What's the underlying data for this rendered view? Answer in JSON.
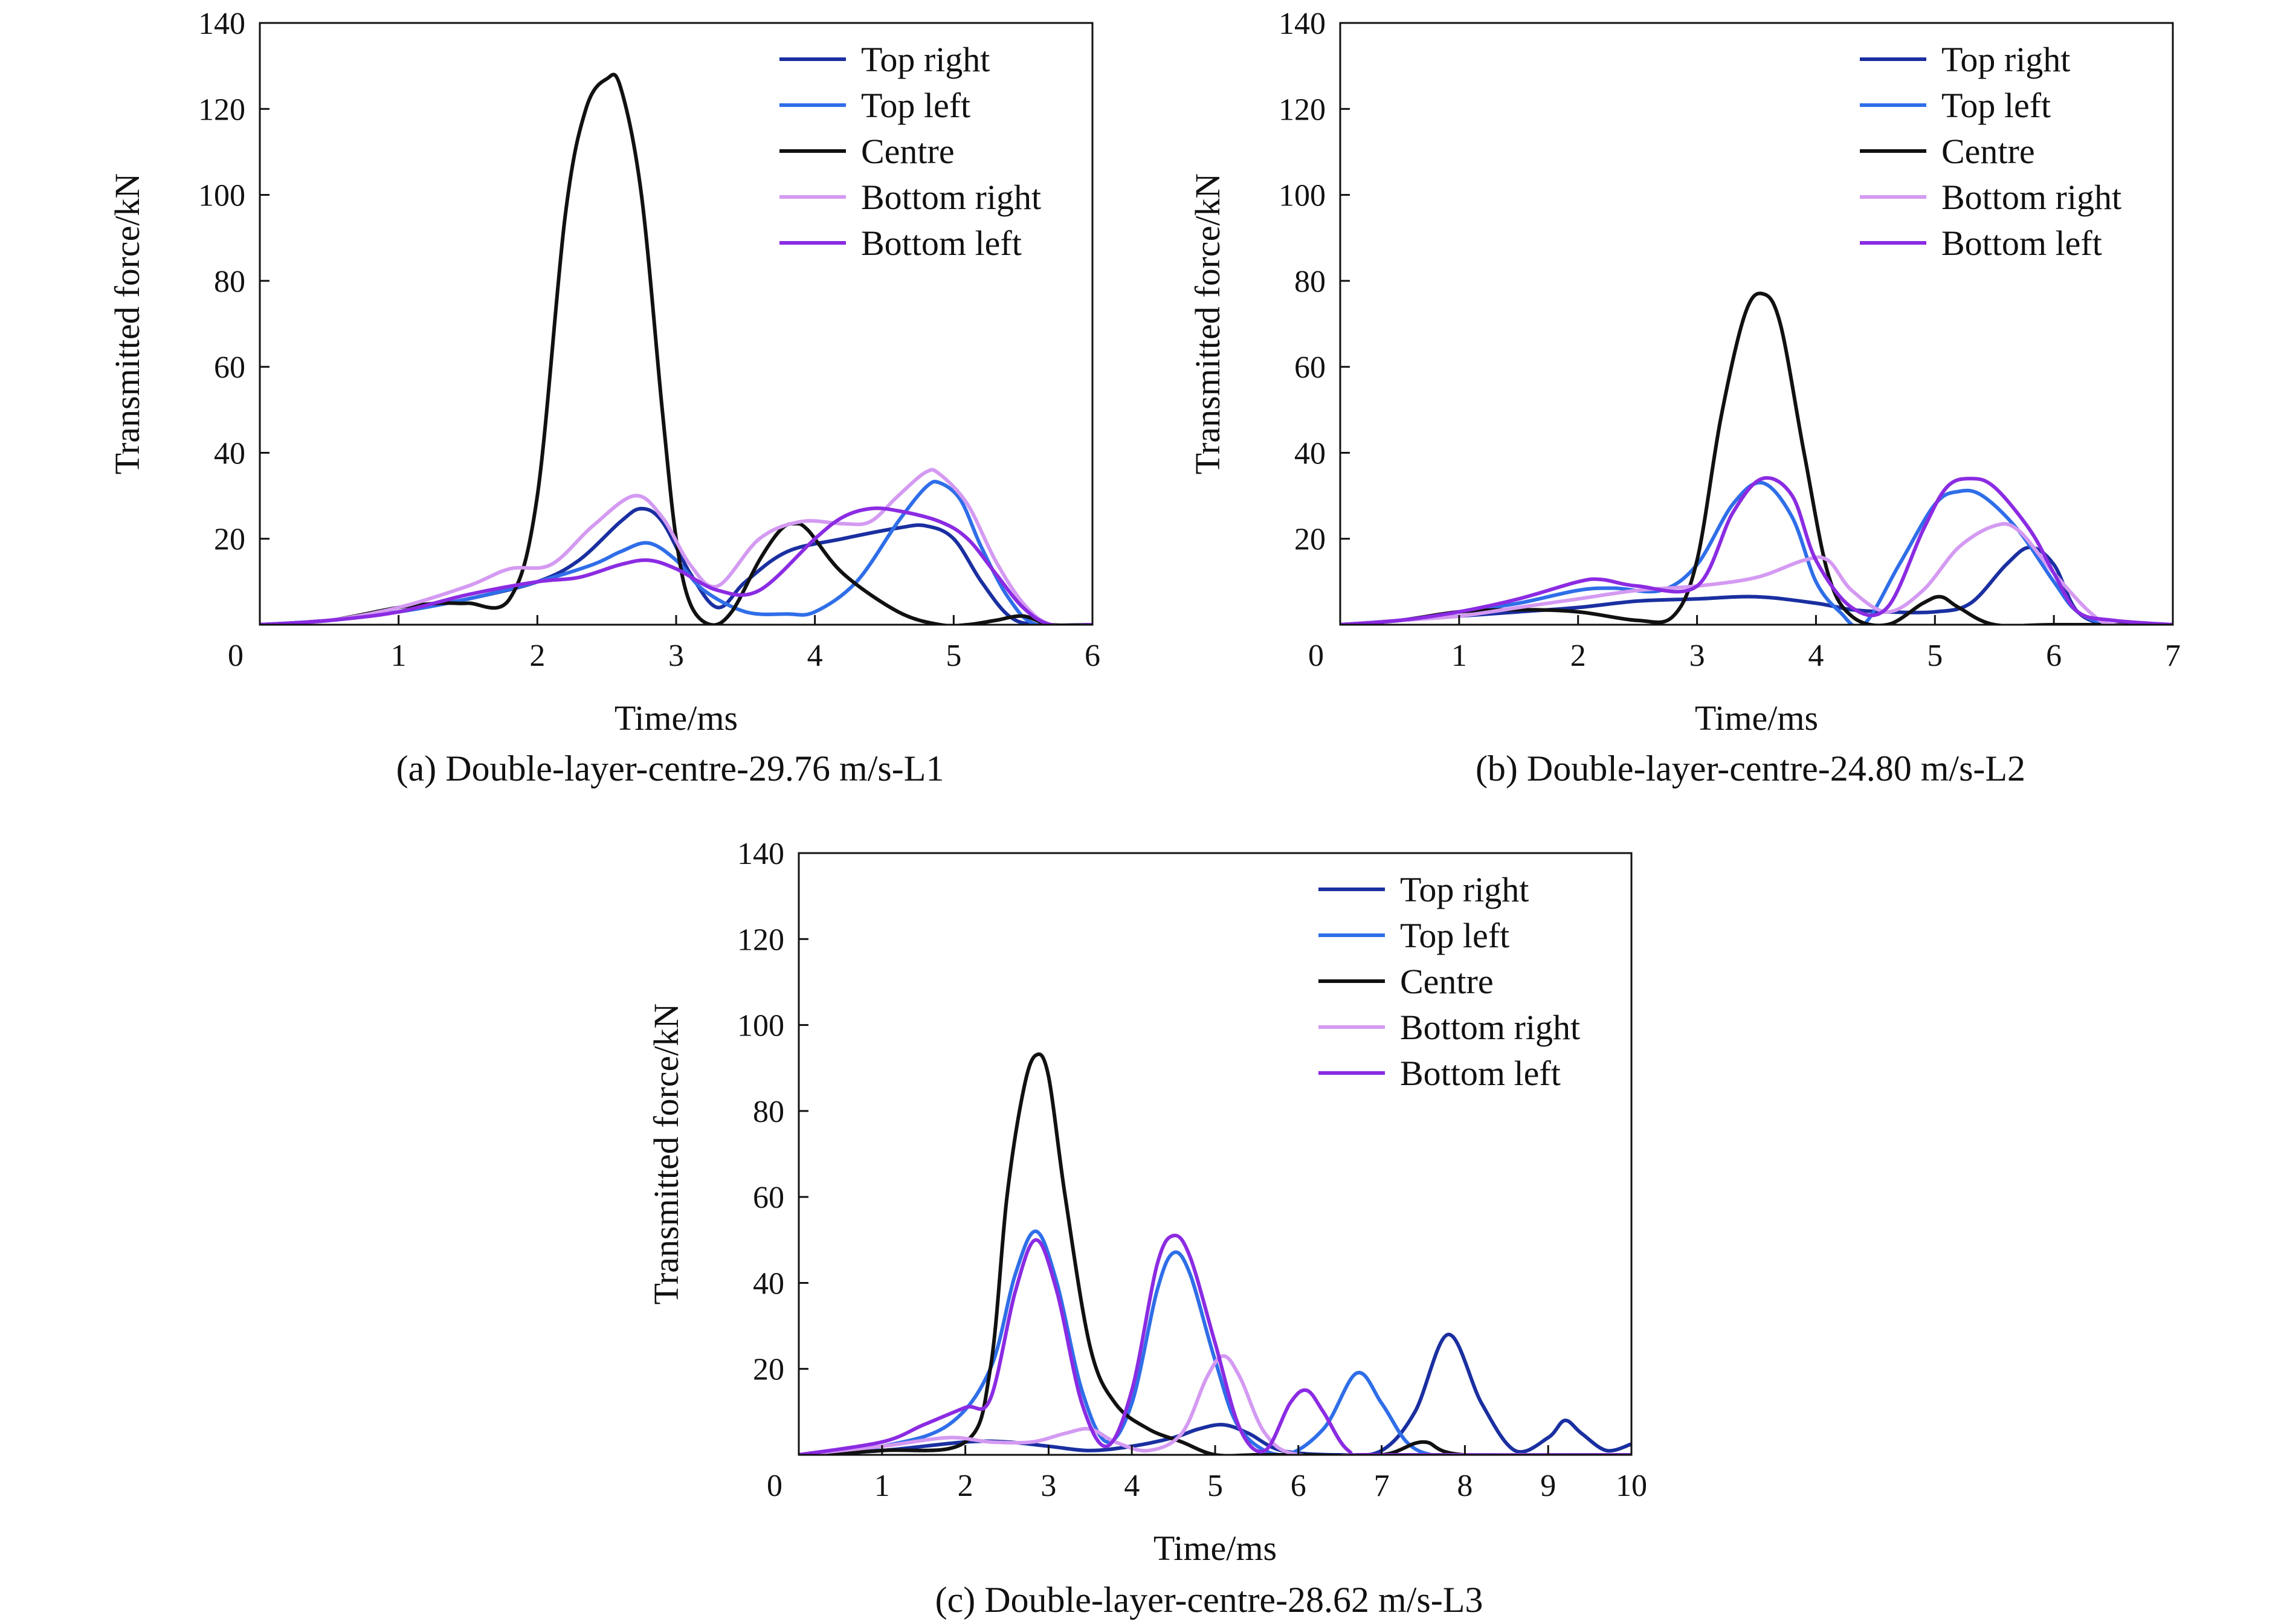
{
  "colors": {
    "top_right": "#1a2fa0",
    "top_left": "#2f6ee8",
    "centre": "#111111",
    "bottom_right": "#d49af2",
    "bottom_left": "#8b2be2"
  },
  "chart_data": [
    {
      "type": "line",
      "title": "(a) Double-layer-centre-29.76 m/s-L1",
      "xlabel": "Time/ms",
      "ylabel": "Transmitted force/kN",
      "xlim": [
        0,
        6
      ],
      "ylim": [
        0,
        140
      ],
      "xticks": [
        0,
        1,
        2,
        3,
        4,
        5,
        6
      ],
      "yticks": [
        20,
        40,
        60,
        80,
        100,
        120,
        140
      ],
      "grid": false,
      "legend_position": "top-right",
      "series": [
        {
          "name": "Top right",
          "color_key": "top_right",
          "x": [
            0,
            0.5,
            1.0,
            1.5,
            2.0,
            2.3,
            2.6,
            2.75,
            2.9,
            3.1,
            3.3,
            3.5,
            3.8,
            4.2,
            4.6,
            4.8,
            5.0,
            5.2,
            5.4,
            5.6,
            6.0
          ],
          "y": [
            0,
            1,
            3,
            6,
            10,
            15,
            24,
            27,
            24,
            12,
            4,
            10,
            17,
            20,
            22.5,
            23,
            20,
            10,
            2,
            0,
            0
          ]
        },
        {
          "name": "Top left",
          "color_key": "top_left",
          "x": [
            0,
            0.5,
            1.0,
            1.5,
            2.0,
            2.4,
            2.6,
            2.8,
            3.0,
            3.2,
            3.5,
            3.8,
            4.0,
            4.3,
            4.6,
            4.8,
            4.9,
            5.05,
            5.2,
            5.4,
            5.6,
            6.0
          ],
          "y": [
            0,
            1,
            3,
            6,
            10,
            14,
            17,
            19,
            15,
            8,
            3,
            2.5,
            3,
            10,
            24,
            32,
            33,
            29,
            18,
            6,
            0,
            0
          ]
        },
        {
          "name": "Centre",
          "color_key": "centre",
          "x": [
            0,
            0.5,
            1.0,
            1.3,
            1.5,
            1.8,
            2.0,
            2.2,
            2.35,
            2.5,
            2.6,
            2.75,
            2.9,
            3.0,
            3.1,
            3.25,
            3.4,
            3.6,
            3.75,
            3.85,
            3.95,
            4.2,
            4.6,
            4.9,
            5.1,
            5.3,
            5.5,
            5.7,
            6.0
          ],
          "y": [
            0,
            1,
            4,
            5,
            5,
            6,
            30,
            95,
            120,
            127,
            125,
            100,
            50,
            20,
            5,
            0,
            3,
            15,
            22,
            23.5,
            22,
            12,
            3,
            0,
            0,
            1,
            2,
            0,
            0
          ]
        },
        {
          "name": "Bottom right",
          "color_key": "bottom_right",
          "x": [
            0,
            0.5,
            1.0,
            1.5,
            1.8,
            2.1,
            2.4,
            2.7,
            2.9,
            3.1,
            3.3,
            3.6,
            3.9,
            4.2,
            4.4,
            4.6,
            4.8,
            4.9,
            5.1,
            5.3,
            5.5,
            5.7,
            6.0
          ],
          "y": [
            0,
            1,
            4,
            9,
            13,
            14,
            23,
            30,
            25,
            14,
            9,
            20,
            24,
            23.5,
            24,
            30,
            35.5,
            35,
            28,
            15,
            5,
            0,
            0
          ]
        },
        {
          "name": "Bottom left",
          "color_key": "bottom_left",
          "x": [
            0,
            0.5,
            1.0,
            1.5,
            2.0,
            2.3,
            2.6,
            2.8,
            3.0,
            3.3,
            3.6,
            4.0,
            4.2,
            4.4,
            4.6,
            4.9,
            5.1,
            5.3,
            5.5,
            5.7,
            6.0
          ],
          "y": [
            0,
            1,
            3,
            7,
            10,
            11,
            14,
            15,
            13,
            8,
            8,
            20,
            25,
            27,
            26.5,
            24,
            20,
            12,
            4,
            0,
            0
          ]
        }
      ]
    },
    {
      "type": "line",
      "title": "(b) Double-layer-centre-24.80 m/s-L2",
      "xlabel": "Time/ms",
      "ylabel": "Transmitted force/kN",
      "xlim": [
        0,
        7
      ],
      "ylim": [
        0,
        140
      ],
      "xticks": [
        0,
        1,
        2,
        3,
        4,
        5,
        6,
        7
      ],
      "yticks": [
        20,
        40,
        60,
        80,
        100,
        120,
        140
      ],
      "grid": false,
      "legend_position": "top-right",
      "series": [
        {
          "name": "Top right",
          "color_key": "top_right",
          "x": [
            0,
            0.5,
            1.0,
            1.5,
            2.0,
            2.5,
            3.0,
            3.5,
            4.0,
            4.3,
            4.6,
            5.0,
            5.3,
            5.6,
            5.8,
            6.0,
            6.2,
            6.5,
            7.0
          ],
          "y": [
            0,
            1,
            2,
            3,
            4,
            5.5,
            6,
            6.5,
            5,
            3.5,
            3,
            3,
            5,
            14,
            18,
            14,
            3,
            0,
            0
          ]
        },
        {
          "name": "Top left",
          "color_key": "top_left",
          "x": [
            0,
            0.5,
            1.0,
            1.5,
            2.0,
            2.3,
            2.7,
            3.0,
            3.3,
            3.55,
            3.8,
            4.0,
            4.2,
            4.4,
            4.7,
            5.0,
            5.2,
            5.4,
            5.7,
            6.0,
            6.2,
            6.5,
            7.0
          ],
          "y": [
            0,
            1,
            3,
            5,
            8,
            8.5,
            8,
            14,
            28,
            33,
            25,
            10,
            3,
            0,
            14,
            28,
            31,
            30,
            22,
            10,
            3,
            0,
            0
          ]
        },
        {
          "name": "Centre",
          "color_key": "centre",
          "x": [
            0,
            0.5,
            1.0,
            1.5,
            2.0,
            2.5,
            2.8,
            3.0,
            3.2,
            3.4,
            3.55,
            3.7,
            3.9,
            4.1,
            4.3,
            4.6,
            4.9,
            5.05,
            5.2,
            5.5,
            6.0,
            7.0
          ],
          "y": [
            0,
            1,
            3,
            3.5,
            3,
            1,
            2,
            15,
            48,
            72,
            77,
            70,
            40,
            12,
            2,
            0,
            5,
            6.5,
            4,
            0,
            0,
            0
          ]
        },
        {
          "name": "Bottom right",
          "color_key": "bottom_right",
          "x": [
            0,
            0.5,
            1.0,
            1.5,
            2.0,
            2.5,
            3.0,
            3.5,
            3.9,
            4.1,
            4.3,
            4.6,
            4.9,
            5.2,
            5.5,
            5.7,
            6.0,
            6.3,
            6.5,
            7.0
          ],
          "y": [
            0,
            1,
            2,
            4,
            6,
            8,
            9,
            11,
            15,
            15,
            8,
            3,
            8,
            18,
            23,
            22,
            12,
            3,
            0,
            0
          ]
        },
        {
          "name": "Bottom left",
          "color_key": "bottom_left",
          "x": [
            0,
            0.5,
            1.0,
            1.5,
            2.0,
            2.2,
            2.5,
            3.0,
            3.3,
            3.55,
            3.8,
            4.0,
            4.3,
            4.6,
            4.9,
            5.1,
            5.3,
            5.5,
            5.8,
            6.0,
            6.2,
            6.5,
            7.0
          ],
          "y": [
            0,
            1,
            3,
            6,
            10,
            10.5,
            9,
            9,
            26,
            34,
            30,
            15,
            4,
            4,
            22,
            32,
            34,
            32,
            22,
            12,
            3,
            1,
            0
          ]
        }
      ]
    },
    {
      "type": "line",
      "title": "(c) Double-layer-centre-28.62 m/s-L3",
      "xlabel": "Time/ms",
      "ylabel": "Transmitted force/kN",
      "xlim": [
        0,
        10
      ],
      "ylim": [
        0,
        140
      ],
      "xticks": [
        0,
        1,
        2,
        3,
        4,
        5,
        6,
        7,
        8,
        9,
        10
      ],
      "yticks": [
        20,
        40,
        60,
        80,
        100,
        120,
        140
      ],
      "grid": false,
      "legend_position": "top-right",
      "series": [
        {
          "name": "Top right",
          "color_key": "top_right",
          "x": [
            0,
            1.0,
            2.0,
            2.5,
            3.0,
            3.5,
            4.0,
            4.5,
            4.8,
            5.1,
            5.4,
            5.8,
            6.5,
            7.0,
            7.4,
            7.8,
            8.2,
            8.6,
            9.0,
            9.2,
            9.4,
            9.7,
            10.0
          ],
          "y": [
            0,
            1,
            3,
            3,
            2,
            1,
            2,
            4,
            6,
            7,
            5,
            1,
            0,
            1,
            10,
            28,
            12,
            1,
            4,
            8,
            5,
            1,
            2.5
          ]
        },
        {
          "name": "Top left",
          "color_key": "top_left",
          "x": [
            0,
            1.0,
            1.8,
            2.3,
            2.6,
            2.85,
            3.1,
            3.4,
            3.7,
            4.0,
            4.3,
            4.5,
            4.7,
            5.0,
            5.3,
            5.8,
            6.3,
            6.7,
            7.0,
            7.3,
            7.6,
            8.0,
            10.0
          ],
          "y": [
            0,
            2,
            7,
            20,
            42,
            52,
            40,
            15,
            3,
            12,
            38,
            47,
            42,
            22,
            6,
            0,
            6,
            19,
            12,
            3,
            0,
            0,
            0
          ]
        },
        {
          "name": "Centre",
          "color_key": "centre",
          "x": [
            0,
            1.0,
            2.0,
            2.3,
            2.5,
            2.7,
            2.85,
            3.0,
            3.2,
            3.5,
            3.8,
            4.2,
            4.6,
            5.0,
            5.5,
            6.0,
            7.0,
            7.5,
            8.0,
            10.0
          ],
          "y": [
            0,
            1,
            3,
            20,
            60,
            85,
            93,
            88,
            60,
            25,
            12,
            6,
            3,
            0,
            0,
            0,
            0,
            3,
            0,
            0
          ]
        },
        {
          "name": "Bottom right",
          "color_key": "bottom_right",
          "x": [
            0,
            1.0,
            1.8,
            2.3,
            2.8,
            3.2,
            3.5,
            3.8,
            4.2,
            4.6,
            4.9,
            5.1,
            5.3,
            5.6,
            6.0,
            7.0,
            10.0
          ],
          "y": [
            0,
            2,
            4,
            3,
            3,
            5,
            6,
            3,
            1,
            5,
            18,
            23,
            18,
            5,
            0,
            0,
            0
          ]
        },
        {
          "name": "Bottom left",
          "color_key": "bottom_left",
          "x": [
            0,
            1.0,
            1.5,
            2.0,
            2.3,
            2.6,
            2.85,
            3.1,
            3.4,
            3.7,
            4.0,
            4.3,
            4.5,
            4.7,
            5.0,
            5.3,
            5.6,
            5.9,
            6.1,
            6.3,
            6.6,
            7.0,
            10.0
          ],
          "y": [
            0,
            3,
            7,
            11,
            13,
            38,
            50,
            38,
            12,
            2,
            15,
            44,
            51,
            46,
            26,
            6,
            1,
            12,
            15,
            10,
            1,
            0,
            0
          ]
        }
      ]
    }
  ]
}
